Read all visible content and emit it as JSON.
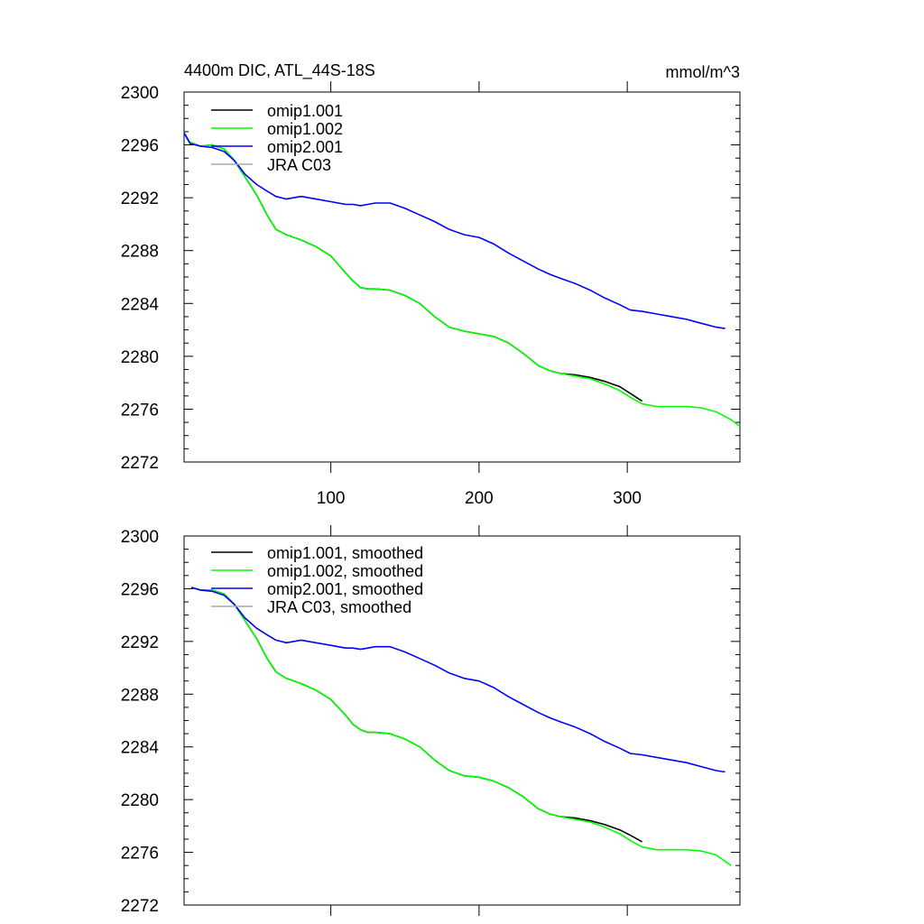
{
  "title_left": "4400m DIC, ATL_44S-18S",
  "title_right": "mmol/m^3",
  "colors": {
    "omip1_001": "#000000",
    "omip1_002": "#00ff00",
    "omip2_001": "#0000ff",
    "jra_c03": "#aaaaaa"
  },
  "chart_data": [
    {
      "type": "line",
      "title": "4400m DIC, ATL_44S-18S",
      "units": "mmol/m^3",
      "xlabel": "",
      "ylabel": "",
      "xlim": [
        1,
        376
      ],
      "ylim": [
        2272,
        2300
      ],
      "xticks": [
        100,
        200,
        300
      ],
      "yticks": [
        2272,
        2276,
        2280,
        2284,
        2288,
        2292,
        2296,
        2300
      ],
      "grid": false,
      "legend": "top-left",
      "series": [
        {
          "name": "omip1.001",
          "color_key": "omip1_001",
          "x": [
            1,
            5,
            12,
            20,
            28,
            35,
            42,
            50,
            57,
            63,
            70,
            80,
            90,
            100,
            110,
            115,
            120,
            125,
            130,
            140,
            150,
            160,
            170,
            180,
            190,
            200,
            210,
            220,
            230,
            240,
            248,
            255,
            265,
            275,
            285,
            295,
            302,
            310
          ],
          "y": [
            2296.9,
            2296.2,
            2295.9,
            2296.0,
            2295.7,
            2294.8,
            2293.6,
            2292.2,
            2290.7,
            2289.6,
            2289.2,
            2288.8,
            2288.3,
            2287.6,
            2286.3,
            2285.7,
            2285.2,
            2285.1,
            2285.1,
            2285.0,
            2284.6,
            2284.0,
            2283.0,
            2282.2,
            2281.9,
            2281.7,
            2281.5,
            2281.0,
            2280.2,
            2279.3,
            2278.9,
            2278.7,
            2278.6,
            2278.4,
            2278.1,
            2277.7,
            2277.2,
            2276.6
          ]
        },
        {
          "name": "omip1.002",
          "color_key": "omip1_002",
          "x": [
            1,
            5,
            12,
            20,
            28,
            35,
            42,
            50,
            57,
            63,
            70,
            80,
            90,
            100,
            110,
            115,
            120,
            125,
            130,
            140,
            150,
            160,
            170,
            180,
            190,
            200,
            210,
            220,
            230,
            240,
            248,
            255,
            265,
            275,
            285,
            295,
            302,
            310,
            320,
            330,
            340,
            350,
            360,
            370,
            376
          ],
          "y": [
            2296.9,
            2296.2,
            2295.9,
            2296.0,
            2295.7,
            2294.8,
            2293.6,
            2292.2,
            2290.7,
            2289.6,
            2289.2,
            2288.8,
            2288.3,
            2287.6,
            2286.3,
            2285.7,
            2285.2,
            2285.1,
            2285.1,
            2285.0,
            2284.6,
            2284.0,
            2283.0,
            2282.2,
            2281.9,
            2281.7,
            2281.5,
            2281.0,
            2280.2,
            2279.3,
            2278.9,
            2278.7,
            2278.5,
            2278.3,
            2277.9,
            2277.4,
            2276.9,
            2276.4,
            2276.2,
            2276.2,
            2276.2,
            2276.1,
            2275.8,
            2275.2,
            2274.7
          ]
        },
        {
          "name": "omip2.001",
          "color_key": "omip2_001",
          "x": [
            1,
            5,
            12,
            20,
            28,
            35,
            42,
            50,
            57,
            63,
            70,
            80,
            90,
            100,
            110,
            115,
            120,
            125,
            130,
            140,
            150,
            160,
            170,
            180,
            190,
            200,
            210,
            220,
            230,
            240,
            248,
            255,
            265,
            275,
            285,
            295,
            302,
            310,
            320,
            330,
            340,
            350,
            360,
            366
          ],
          "y": [
            2296.9,
            2296.1,
            2295.9,
            2295.8,
            2295.5,
            2294.8,
            2293.8,
            2293.0,
            2292.5,
            2292.1,
            2291.9,
            2292.1,
            2291.9,
            2291.7,
            2291.5,
            2291.5,
            2291.4,
            2291.5,
            2291.6,
            2291.6,
            2291.2,
            2290.7,
            2290.2,
            2289.6,
            2289.2,
            2289.0,
            2288.5,
            2287.8,
            2287.2,
            2286.6,
            2286.2,
            2285.9,
            2285.5,
            2285.0,
            2284.4,
            2283.9,
            2283.5,
            2283.4,
            2283.2,
            2283.0,
            2282.8,
            2282.5,
            2282.2,
            2282.1
          ]
        },
        {
          "name": "JRA C03",
          "color_key": "jra_c03",
          "x": [],
          "y": []
        }
      ]
    },
    {
      "type": "line",
      "title": "",
      "xlabel": "",
      "ylabel": "",
      "xlim": [
        1,
        376
      ],
      "ylim": [
        2272,
        2300
      ],
      "xticks": [
        100,
        200,
        300
      ],
      "yticks": [
        2272,
        2276,
        2280,
        2284,
        2288,
        2292,
        2296,
        2300
      ],
      "grid": false,
      "legend": "top-left",
      "series": [
        {
          "name": "omip1.001, smoothed",
          "color_key": "omip1_001",
          "x": [
            6,
            12,
            20,
            28,
            35,
            42,
            50,
            57,
            63,
            70,
            80,
            90,
            100,
            110,
            115,
            120,
            125,
            130,
            140,
            150,
            160,
            170,
            180,
            190,
            200,
            210,
            220,
            230,
            240,
            248,
            255,
            265,
            275,
            285,
            295,
            302,
            310
          ],
          "y": [
            2296.1,
            2295.9,
            2295.9,
            2295.6,
            2294.8,
            2293.6,
            2292.2,
            2290.7,
            2289.7,
            2289.2,
            2288.8,
            2288.3,
            2287.6,
            2286.4,
            2285.7,
            2285.3,
            2285.1,
            2285.1,
            2285.0,
            2284.6,
            2284.0,
            2283.0,
            2282.2,
            2281.8,
            2281.7,
            2281.4,
            2280.9,
            2280.2,
            2279.3,
            2278.9,
            2278.7,
            2278.6,
            2278.4,
            2278.1,
            2277.7,
            2277.3,
            2276.8
          ]
        },
        {
          "name": "omip1.002, smoothed",
          "color_key": "omip1_002",
          "x": [
            6,
            12,
            20,
            28,
            35,
            42,
            50,
            57,
            63,
            70,
            80,
            90,
            100,
            110,
            115,
            120,
            125,
            130,
            140,
            150,
            160,
            170,
            180,
            190,
            200,
            210,
            220,
            230,
            240,
            248,
            255,
            265,
            275,
            285,
            295,
            302,
            310,
            320,
            330,
            340,
            350,
            360,
            370
          ],
          "y": [
            2296.1,
            2295.9,
            2295.9,
            2295.6,
            2294.8,
            2293.6,
            2292.2,
            2290.7,
            2289.7,
            2289.2,
            2288.8,
            2288.3,
            2287.6,
            2286.4,
            2285.7,
            2285.3,
            2285.1,
            2285.1,
            2285.0,
            2284.6,
            2284.0,
            2283.0,
            2282.2,
            2281.8,
            2281.7,
            2281.4,
            2280.9,
            2280.2,
            2279.3,
            2278.9,
            2278.7,
            2278.5,
            2278.3,
            2277.9,
            2277.4,
            2276.9,
            2276.4,
            2276.2,
            2276.2,
            2276.2,
            2276.1,
            2275.8,
            2275.0
          ]
        },
        {
          "name": "omip2.001, smoothed",
          "color_key": "omip2_001",
          "x": [
            6,
            12,
            20,
            28,
            35,
            42,
            50,
            57,
            63,
            70,
            80,
            90,
            100,
            110,
            115,
            120,
            125,
            130,
            140,
            150,
            160,
            170,
            180,
            190,
            200,
            210,
            220,
            230,
            240,
            248,
            255,
            265,
            275,
            285,
            295,
            302,
            310,
            320,
            330,
            340,
            350,
            360,
            366
          ],
          "y": [
            2296.1,
            2295.9,
            2295.8,
            2295.5,
            2294.8,
            2293.8,
            2293.0,
            2292.5,
            2292.1,
            2291.9,
            2292.1,
            2291.9,
            2291.7,
            2291.5,
            2291.5,
            2291.4,
            2291.5,
            2291.6,
            2291.6,
            2291.2,
            2290.7,
            2290.2,
            2289.6,
            2289.2,
            2289.0,
            2288.5,
            2287.8,
            2287.2,
            2286.6,
            2286.2,
            2285.9,
            2285.5,
            2285.0,
            2284.4,
            2283.9,
            2283.5,
            2283.4,
            2283.2,
            2283.0,
            2282.8,
            2282.5,
            2282.2,
            2282.1
          ]
        },
        {
          "name": "JRA C03, smoothed",
          "color_key": "jra_c03",
          "x": [],
          "y": []
        }
      ]
    }
  ]
}
